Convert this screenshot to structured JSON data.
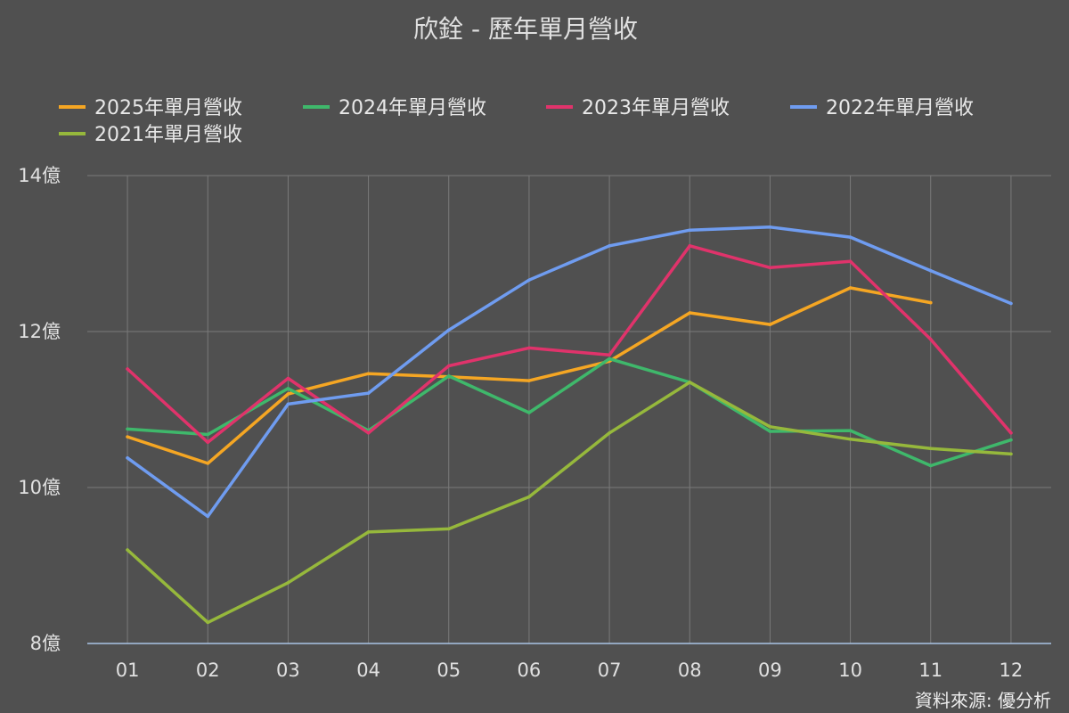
{
  "source": "資料來源: 優分析",
  "chart_data": {
    "type": "line",
    "title": "欣銓 - 歷年單月營收",
    "categories": [
      "01",
      "02",
      "03",
      "04",
      "05",
      "06",
      "07",
      "08",
      "09",
      "10",
      "11",
      "12"
    ],
    "ylim": [
      8,
      14
    ],
    "yticks": [
      {
        "value": 8,
        "label": "8億"
      },
      {
        "value": 10,
        "label": "10億"
      },
      {
        "value": 12,
        "label": "12億"
      },
      {
        "value": 14,
        "label": "14億"
      }
    ],
    "grid": true,
    "legend_position": "top",
    "series": [
      {
        "name": "2025年單月營收",
        "color": "#F5A623",
        "values": [
          10.65,
          10.31,
          11.2,
          11.46,
          11.42,
          11.37,
          11.62,
          12.24,
          12.09,
          12.56,
          12.37,
          null
        ]
      },
      {
        "name": "2024年單月營收",
        "color": "#3FB86B",
        "values": [
          10.75,
          10.68,
          11.27,
          10.73,
          11.43,
          10.96,
          11.65,
          11.35,
          10.72,
          10.73,
          10.28,
          10.61
        ]
      },
      {
        "name": "2023年單月營收",
        "color": "#E0336B",
        "values": [
          11.52,
          10.58,
          11.4,
          10.7,
          11.56,
          11.79,
          11.7,
          13.1,
          12.82,
          12.9,
          11.9,
          10.7
        ]
      },
      {
        "name": "2022年單月營收",
        "color": "#6F9CF0",
        "values": [
          10.38,
          9.63,
          11.07,
          11.21,
          12.02,
          12.66,
          13.1,
          13.3,
          13.34,
          13.21,
          12.78,
          12.36
        ]
      },
      {
        "name": "2021年單月營收",
        "color": "#96B83C",
        "values": [
          9.2,
          8.27,
          8.78,
          9.43,
          9.47,
          9.88,
          10.7,
          11.35,
          10.78,
          10.62,
          10.5,
          10.43
        ]
      }
    ]
  }
}
